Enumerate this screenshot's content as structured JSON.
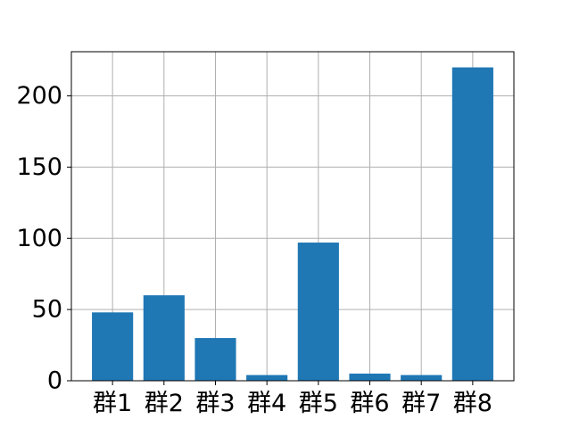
{
  "chart_data": {
    "type": "bar",
    "title": "",
    "xlabel": "",
    "ylabel": "",
    "categories": [
      "群1",
      "群2",
      "群3",
      "群4",
      "群5",
      "群6",
      "群7",
      "群8"
    ],
    "values": [
      48,
      60,
      30,
      4,
      97,
      5,
      4,
      220
    ],
    "ylim": [
      0,
      231
    ],
    "yticks": [
      0,
      50,
      100,
      150,
      200
    ],
    "grid": true,
    "bar_color": "#1f77b4"
  }
}
